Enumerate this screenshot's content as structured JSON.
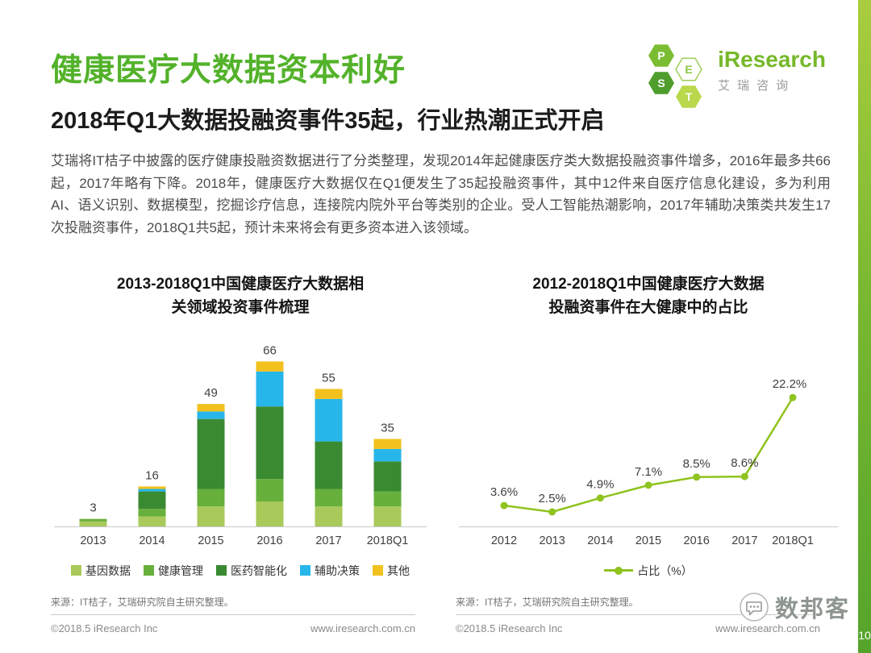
{
  "page": {
    "title": "健康医疗大数据资本利好",
    "subtitle": "2018年Q1大数据投融资事件35起，行业热潮正式开启",
    "body": "艾瑞将IT桔子中披露的医疗健康投融资数据进行了分类整理，发现2014年起健康医疗类大数据投融资事件增多，2016年最多共66起，2017年略有下降。2018年，健康医疗大数据仅在Q1便发生了35起投融资事件，其中12件来自医疗信息化建设，多为利用AI、语义识别、数据模型，挖掘诊疗信息，连接院内院外平台等类别的企业。受人工智能热潮影响，2017年辅助决策类共发生17次投融资事件，2018Q1共5起，预计未来将会有更多资本进入该领域。",
    "page_number": "10",
    "accent_color": "#53b22a"
  },
  "logo": {
    "brand": "iResearch",
    "brand_cn": "艾瑞咨询",
    "hexagons": [
      {
        "letter": "P",
        "color": "#7bbd32",
        "outline": false
      },
      {
        "letter": "E",
        "color": "#ffffff",
        "outline": true
      },
      {
        "letter": "S",
        "color": "#4e9d2d",
        "outline": false
      },
      {
        "letter": "T",
        "color": "#b9d84b",
        "outline": false
      }
    ]
  },
  "watermark": {
    "label": "数邦客",
    "icon": "chat-bubble-icon"
  },
  "footer": {
    "left": {
      "copyright": "©2018.5 iResearch Inc",
      "website": "www.iresearch.com.cn"
    },
    "right": {
      "copyright": "©2018.5 iResearch Inc",
      "website": "www.iresearch.com.cn"
    }
  },
  "chart_data": [
    {
      "type": "bar",
      "stacked": true,
      "title": "2013-2018Q1中国健康医疗大数据相关领域投资事件梳理",
      "title_lines": [
        "2013-2018Q1中国健康医疗大数据相",
        "关领域投资事件梳理"
      ],
      "categories": [
        "2013",
        "2014",
        "2015",
        "2016",
        "2017",
        "2018Q1"
      ],
      "totals": [
        3,
        16,
        49,
        66,
        55,
        35
      ],
      "series": [
        {
          "name": "基因数据",
          "color": "#a9c95a",
          "values": [
            2,
            4,
            8,
            10,
            8,
            8
          ]
        },
        {
          "name": "健康管理",
          "color": "#67b03c",
          "values": [
            1,
            3,
            7,
            9,
            7,
            6
          ]
        },
        {
          "name": "医药智能化",
          "color": "#3a8a31",
          "values": [
            0,
            7,
            28,
            29,
            19,
            12
          ]
        },
        {
          "name": "辅助决策",
          "color": "#27b6ea",
          "values": [
            0,
            1,
            3,
            14,
            17,
            5
          ]
        },
        {
          "name": "其他",
          "color": "#f2c11e",
          "values": [
            0,
            1,
            3,
            4,
            4,
            4
          ]
        }
      ],
      "xlabel": "",
      "ylabel": "",
      "ylim": [
        0,
        70
      ],
      "grid": false,
      "legend_position": "bottom",
      "source": "来源：IT桔子，艾瑞研究院自主研究整理。"
    },
    {
      "type": "line",
      "title": "2012-2018Q1中国健康医疗大数据投融资事件在大健康中的占比",
      "title_lines": [
        "2012-2018Q1中国健康医疗大数据",
        "投融资事件在大健康中的占比"
      ],
      "categories": [
        "2012",
        "2013",
        "2014",
        "2015",
        "2016",
        "2017",
        "2018Q1"
      ],
      "series": [
        {
          "name": "占比（%）",
          "color": "#8fc31f",
          "values": [
            3.6,
            2.5,
            4.9,
            7.1,
            8.5,
            8.6,
            22.2
          ]
        }
      ],
      "point_labels": [
        "3.6%",
        "2.5%",
        "4.9%",
        "7.1%",
        "8.5%",
        "8.6%",
        "22.2%"
      ],
      "xlabel": "",
      "ylabel": "",
      "ylim": [
        0,
        25
      ],
      "grid": false,
      "legend_position": "bottom",
      "source": "来源：IT桔子，艾瑞研究院自主研究整理。"
    }
  ]
}
